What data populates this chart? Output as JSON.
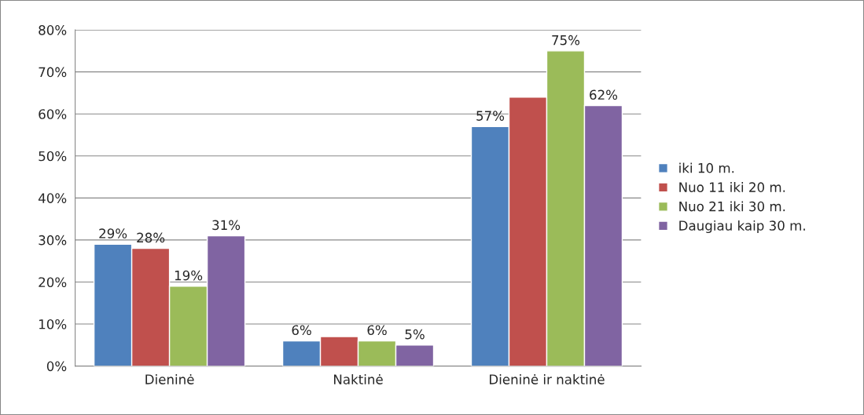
{
  "chart_data": {
    "type": "bar",
    "categories": [
      "Dieninė",
      "Naktinė",
      "Dieninė ir naktinė"
    ],
    "series": [
      {
        "name": "iki 10 m.",
        "color": "#4f81bd",
        "values": [
          29,
          6,
          57
        ],
        "value_labels": [
          "29%",
          "6%",
          "57%"
        ]
      },
      {
        "name": "Nuo 11 iki 20 m.",
        "color": "#c0504d",
        "values": [
          28,
          7,
          64
        ],
        "value_labels": [
          "28%",
          null,
          null
        ]
      },
      {
        "name": "Nuo 21 iki 30 m.",
        "color": "#9bbb59",
        "values": [
          19,
          6,
          75
        ],
        "value_labels": [
          "19%",
          "6%",
          "75%"
        ]
      },
      {
        "name": "Daugiau kaip 30 m.",
        "color": "#8064a2",
        "values": [
          31,
          5,
          62
        ],
        "value_labels": [
          "31%",
          "5%",
          "62%"
        ]
      }
    ],
    "ylim": [
      0,
      80
    ],
    "yticks": [
      {
        "value": 0,
        "label": "0%"
      },
      {
        "value": 10,
        "label": "10%"
      },
      {
        "value": 20,
        "label": "20%"
      },
      {
        "value": 30,
        "label": "30%"
      },
      {
        "value": 40,
        "label": "40%"
      },
      {
        "value": 50,
        "label": "50%"
      },
      {
        "value": 60,
        "label": "60%"
      },
      {
        "value": 70,
        "label": "70%"
      },
      {
        "value": 80,
        "label": "80%"
      }
    ],
    "grid": "y",
    "legend": "right"
  }
}
